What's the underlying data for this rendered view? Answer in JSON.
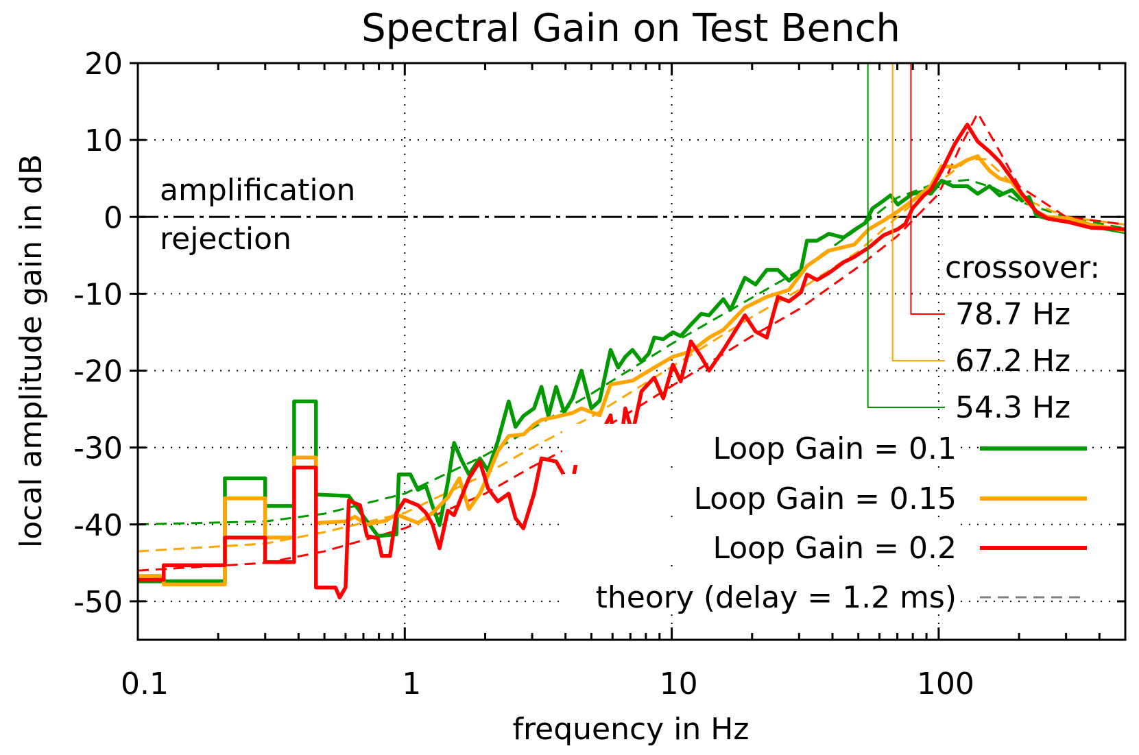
{
  "chart_data": {
    "type": "line",
    "title": "Spectral Gain on Test Bench",
    "xlabel": "frequency in Hz",
    "ylabel": "local amplitude gain in dB",
    "xscale": "log",
    "xlim": [
      0.1,
      500
    ],
    "ylim": [
      -55,
      20
    ],
    "xticks": [
      0.1,
      1,
      10,
      100
    ],
    "xtick_labels": [
      "0.1",
      "1",
      "10",
      "100"
    ],
    "yticks": [
      20,
      10,
      0,
      -10,
      -20,
      -30,
      -40,
      -50
    ],
    "ytick_labels": [
      "20",
      "10",
      "0",
      "-10",
      "-20",
      "-30",
      "-40",
      "-50"
    ],
    "grid": "dotted at major ticks",
    "legend_placement": "bottom-right",
    "reference_line": {
      "y": 0,
      "style": "dash-dot",
      "color": "#000000"
    },
    "annotations": {
      "above": "amplification",
      "below": "rejection"
    },
    "crossover": {
      "label": "crossover:",
      "items": [
        {
          "freq": 78.7,
          "label": "78.7 Hz",
          "color": "#ff0000",
          "db_marker": -12
        },
        {
          "freq": 67.2,
          "label": "67.2 Hz",
          "color": "#ffa500",
          "db_marker": -18.2
        },
        {
          "freq": 54.3,
          "label": "54.3 Hz",
          "color": "#009900",
          "db_marker": -24.2
        }
      ]
    },
    "series": [
      {
        "name": "Loop Gain = 0.1",
        "color": "#009900",
        "points": [
          [
            0.1,
            -47.4
          ],
          [
            0.212,
            -47.4
          ],
          [
            0.212,
            -34
          ],
          [
            0.3,
            -34
          ],
          [
            0.3,
            -37.6
          ],
          [
            0.385,
            -37.6
          ],
          [
            0.385,
            -24
          ],
          [
            0.465,
            -24
          ],
          [
            0.465,
            -36.1
          ],
          [
            0.617,
            -36.3
          ],
          [
            0.722,
            -39.6
          ],
          [
            0.793,
            -41.5
          ],
          [
            0.93,
            -41.3
          ],
          [
            0.95,
            -33.5
          ],
          [
            1.05,
            -33.5
          ],
          [
            1.12,
            -35.5
          ],
          [
            1.2,
            -35.0
          ],
          [
            1.27,
            -37.6
          ],
          [
            1.35,
            -40.1
          ],
          [
            1.45,
            -34.5
          ],
          [
            1.53,
            -29.4
          ],
          [
            1.63,
            -31.6
          ],
          [
            1.74,
            -33.5
          ],
          [
            1.91,
            -31.4
          ],
          [
            2.05,
            -33
          ],
          [
            2.23,
            -29.2
          ],
          [
            2.45,
            -24
          ],
          [
            2.6,
            -27.3
          ],
          [
            2.78,
            -25.9
          ],
          [
            3.05,
            -24.9
          ],
          [
            3.25,
            -22.1
          ],
          [
            3.45,
            -25.9
          ],
          [
            3.69,
            -22.1
          ],
          [
            3.95,
            -25.4
          ],
          [
            4.25,
            -23.6
          ],
          [
            4.59,
            -20.0
          ],
          [
            5.0,
            -24.9
          ],
          [
            5.37,
            -23.9
          ],
          [
            5.9,
            -17.3
          ],
          [
            6.3,
            -19.6
          ],
          [
            6.7,
            -18.2
          ],
          [
            7.13,
            -17.3
          ],
          [
            7.7,
            -18.8
          ],
          [
            8.2,
            -17.8
          ],
          [
            8.6,
            -15.7
          ],
          [
            9.3,
            -15.9
          ],
          [
            10.1,
            -15.0
          ],
          [
            10.8,
            -15.5
          ],
          [
            11.8,
            -14.0
          ],
          [
            12.9,
            -12.6
          ],
          [
            13.8,
            -12.8
          ],
          [
            15.6,
            -10.7
          ],
          [
            16.6,
            -12.1
          ],
          [
            18.8,
            -7.9
          ],
          [
            20.6,
            -8.8
          ],
          [
            22.7,
            -6.9
          ],
          [
            25,
            -6.9
          ],
          [
            27.5,
            -8.3
          ],
          [
            30.5,
            -6.9
          ],
          [
            32.1,
            -3.1
          ],
          [
            35,
            -3.1
          ],
          [
            38.8,
            -2.2
          ],
          [
            44,
            -2.7
          ],
          [
            48.3,
            -1.7
          ],
          [
            53,
            -0.8
          ],
          [
            56.5,
            1.1
          ],
          [
            62.1,
            2.1
          ],
          [
            66,
            2.8
          ],
          [
            70.3,
            1.6
          ],
          [
            79.8,
            3.0
          ],
          [
            88,
            3.3
          ],
          [
            93.3,
            3.0
          ],
          [
            102.5,
            4.7
          ],
          [
            113,
            4.0
          ],
          [
            128,
            4.0
          ],
          [
            140,
            3.0
          ],
          [
            155,
            4.0
          ],
          [
            169,
            2.8
          ],
          [
            188,
            3.5
          ],
          [
            205,
            2.1
          ],
          [
            218,
            2.6
          ],
          [
            232,
            0.2
          ],
          [
            255,
            -0.2
          ],
          [
            308,
            -0.7
          ],
          [
            371,
            -1.2
          ],
          [
            500,
            -2.0
          ]
        ]
      },
      {
        "name": "Loop Gain = 0.15",
        "color": "#ffa500",
        "points": [
          [
            0.1,
            -46.7
          ],
          [
            0.125,
            -46.7
          ],
          [
            0.125,
            -47.8
          ],
          [
            0.212,
            -47.8
          ],
          [
            0.212,
            -36.6
          ],
          [
            0.3,
            -36.6
          ],
          [
            0.3,
            -41.7
          ],
          [
            0.385,
            -41.7
          ],
          [
            0.385,
            -31.3
          ],
          [
            0.465,
            -31.3
          ],
          [
            0.465,
            -39.8
          ],
          [
            0.6,
            -39.6
          ],
          [
            0.65,
            -39.0
          ],
          [
            0.722,
            -40.0
          ],
          [
            0.85,
            -39.5
          ],
          [
            0.93,
            -38.7
          ],
          [
            1.12,
            -39.8
          ],
          [
            1.27,
            -38.5
          ],
          [
            1.45,
            -36.5
          ],
          [
            1.6,
            -34
          ],
          [
            1.74,
            -38
          ],
          [
            1.91,
            -36
          ],
          [
            2.05,
            -33.6
          ],
          [
            2.23,
            -30.5
          ],
          [
            2.45,
            -28.5
          ],
          [
            2.78,
            -28.3
          ],
          [
            3.05,
            -27.0
          ],
          [
            3.25,
            -26.4
          ],
          [
            3.69,
            -26.0
          ],
          [
            4.25,
            -25.5
          ],
          [
            4.59,
            -24.9
          ],
          [
            5.37,
            -25.8
          ],
          [
            5.9,
            -21.8
          ],
          [
            7.13,
            -21.3
          ],
          [
            8.6,
            -19.6
          ],
          [
            10.1,
            -18.2
          ],
          [
            11.8,
            -17.5
          ],
          [
            13.8,
            -15.7
          ],
          [
            15.6,
            -14.7
          ],
          [
            18.8,
            -11.8
          ],
          [
            22.7,
            -10.4
          ],
          [
            27.5,
            -9.5
          ],
          [
            32.1,
            -6.4
          ],
          [
            38.8,
            -4.4
          ],
          [
            48.3,
            -3.6
          ],
          [
            54.7,
            -1.6
          ],
          [
            62.1,
            -0.5
          ],
          [
            70.3,
            0.7
          ],
          [
            79.8,
            2.1
          ],
          [
            93.3,
            4.0
          ],
          [
            102.5,
            6.6
          ],
          [
            115,
            6.5
          ],
          [
            128,
            7.4
          ],
          [
            140,
            7.9
          ],
          [
            155,
            6.0
          ],
          [
            169,
            5.0
          ],
          [
            188,
            4.5
          ],
          [
            205,
            2.8
          ],
          [
            232,
            0.7
          ],
          [
            255,
            0
          ],
          [
            308,
            -0.2
          ],
          [
            371,
            -1.0
          ],
          [
            500,
            -1.8
          ]
        ]
      },
      {
        "name": "Loop Gain = 0.2",
        "color": "#ff0000",
        "points": [
          [
            0.1,
            -47.2
          ],
          [
            0.125,
            -47.2
          ],
          [
            0.125,
            -45.3
          ],
          [
            0.212,
            -45.3
          ],
          [
            0.212,
            -41.7
          ],
          [
            0.3,
            -41.7
          ],
          [
            0.3,
            -44.9
          ],
          [
            0.385,
            -44.9
          ],
          [
            0.385,
            -32.6
          ],
          [
            0.465,
            -32.6
          ],
          [
            0.465,
            -48.2
          ],
          [
            0.55,
            -48.2
          ],
          [
            0.57,
            -49.5
          ],
          [
            0.6,
            -48.2
          ],
          [
            0.617,
            -36.9
          ],
          [
            0.68,
            -37.5
          ],
          [
            0.722,
            -41.5
          ],
          [
            0.793,
            -41.8
          ],
          [
            0.82,
            -44.1
          ],
          [
            0.88,
            -44.1
          ],
          [
            0.93,
            -38.5
          ],
          [
            1.0,
            -36.8
          ],
          [
            1.12,
            -37.5
          ],
          [
            1.2,
            -38.5
          ],
          [
            1.27,
            -40
          ],
          [
            1.35,
            -43.1
          ],
          [
            1.45,
            -38.2
          ],
          [
            1.53,
            -38.8
          ],
          [
            1.74,
            -34.0
          ],
          [
            1.91,
            -31.8
          ],
          [
            2.05,
            -35.3
          ],
          [
            2.23,
            -37.0
          ],
          [
            2.45,
            -36.0
          ],
          [
            2.6,
            -39.2
          ],
          [
            2.78,
            -40.5
          ],
          [
            3.05,
            -36
          ],
          [
            3.25,
            -31.4
          ],
          [
            3.69,
            -31.8
          ],
          [
            3.95,
            -33.6
          ],
          [
            4.25,
            -34.5
          ],
          [
            4.59,
            -28.2
          ],
          [
            5.0,
            -27.3
          ],
          [
            5.37,
            -28.6
          ],
          [
            5.9,
            -25.8
          ],
          [
            6.3,
            -32.0
          ],
          [
            6.7,
            -24.9
          ],
          [
            7.13,
            -28.2
          ],
          [
            7.7,
            -22.7
          ],
          [
            8.6,
            -20.9
          ],
          [
            9.3,
            -23.6
          ],
          [
            10.1,
            -19.2
          ],
          [
            10.8,
            -21.4
          ],
          [
            11.8,
            -16.2
          ],
          [
            12.9,
            -18.2
          ],
          [
            13.8,
            -20
          ],
          [
            15.6,
            -17.3
          ],
          [
            18.8,
            -12.8
          ],
          [
            20.6,
            -14.9
          ],
          [
            22.7,
            -15.7
          ],
          [
            25,
            -10.4
          ],
          [
            27.5,
            -11
          ],
          [
            30.5,
            -9.8
          ],
          [
            32.1,
            -7.5
          ],
          [
            35,
            -8.2
          ],
          [
            38.8,
            -7.3
          ],
          [
            44,
            -5.9
          ],
          [
            48.3,
            -5.2
          ],
          [
            54.7,
            -4.0
          ],
          [
            62.1,
            -2.4
          ],
          [
            70.3,
            -1.6
          ],
          [
            75,
            -0.9
          ],
          [
            79.8,
            1.1
          ],
          [
            88,
            2.8
          ],
          [
            93.3,
            3.5
          ],
          [
            102.5,
            6.0
          ],
          [
            115,
            9.5
          ],
          [
            128,
            12.0
          ],
          [
            140,
            9.8
          ],
          [
            155,
            8.5
          ],
          [
            169,
            7.2
          ],
          [
            188,
            5.0
          ],
          [
            205,
            3.0
          ],
          [
            232,
            0.7
          ],
          [
            255,
            -0.2
          ],
          [
            308,
            -0.7
          ],
          [
            371,
            -1.4
          ],
          [
            500,
            -1.6
          ]
        ]
      }
    ],
    "theory": {
      "name": "theory (delay = 1.2 ms)",
      "legend_color": "#808080",
      "curves": [
        {
          "color": "#009900",
          "points": [
            [
              0.1,
              -40
            ],
            [
              0.3,
              -39.6
            ],
            [
              0.5,
              -38.6
            ],
            [
              1,
              -36
            ],
            [
              2,
              -31
            ],
            [
              3,
              -27.5
            ],
            [
              5,
              -23
            ],
            [
              10,
              -16.5
            ],
            [
              20,
              -10.5
            ],
            [
              30,
              -7
            ],
            [
              50,
              -1.5
            ],
            [
              70,
              2.5
            ],
            [
              100,
              4.5
            ],
            [
              130,
              4.8
            ],
            [
              160,
              3.8
            ],
            [
              200,
              2.0
            ],
            [
              300,
              0
            ],
            [
              500,
              -1.5
            ]
          ]
        },
        {
          "color": "#ffa500",
          "points": [
            [
              0.1,
              -43.5
            ],
            [
              0.3,
              -42.5
            ],
            [
              0.5,
              -41
            ],
            [
              1,
              -38.5
            ],
            [
              2,
              -33.5
            ],
            [
              3,
              -30
            ],
            [
              5,
              -26
            ],
            [
              10,
              -19.5
            ],
            [
              20,
              -13
            ],
            [
              30,
              -9.5
            ],
            [
              50,
              -4.5
            ],
            [
              70,
              0
            ],
            [
              100,
              4.5
            ],
            [
              130,
              7.5
            ],
            [
              150,
              7.5
            ],
            [
              180,
              5
            ],
            [
              220,
              2
            ],
            [
              300,
              0
            ],
            [
              500,
              -1
            ]
          ]
        },
        {
          "color": "#ff0000",
          "points": [
            [
              0.1,
              -46
            ],
            [
              0.3,
              -45
            ],
            [
              0.5,
              -43.5
            ],
            [
              1,
              -40.5
            ],
            [
              2,
              -36
            ],
            [
              3,
              -32.5
            ],
            [
              5,
              -28.5
            ],
            [
              10,
              -22
            ],
            [
              20,
              -15.5
            ],
            [
              30,
              -12
            ],
            [
              50,
              -6.5
            ],
            [
              70,
              -2.5
            ],
            [
              100,
              3
            ],
            [
              120,
              9
            ],
            [
              140,
              13.5
            ],
            [
              160,
              10
            ],
            [
              200,
              4
            ],
            [
              300,
              0
            ],
            [
              500,
              -1
            ]
          ]
        }
      ]
    }
  }
}
